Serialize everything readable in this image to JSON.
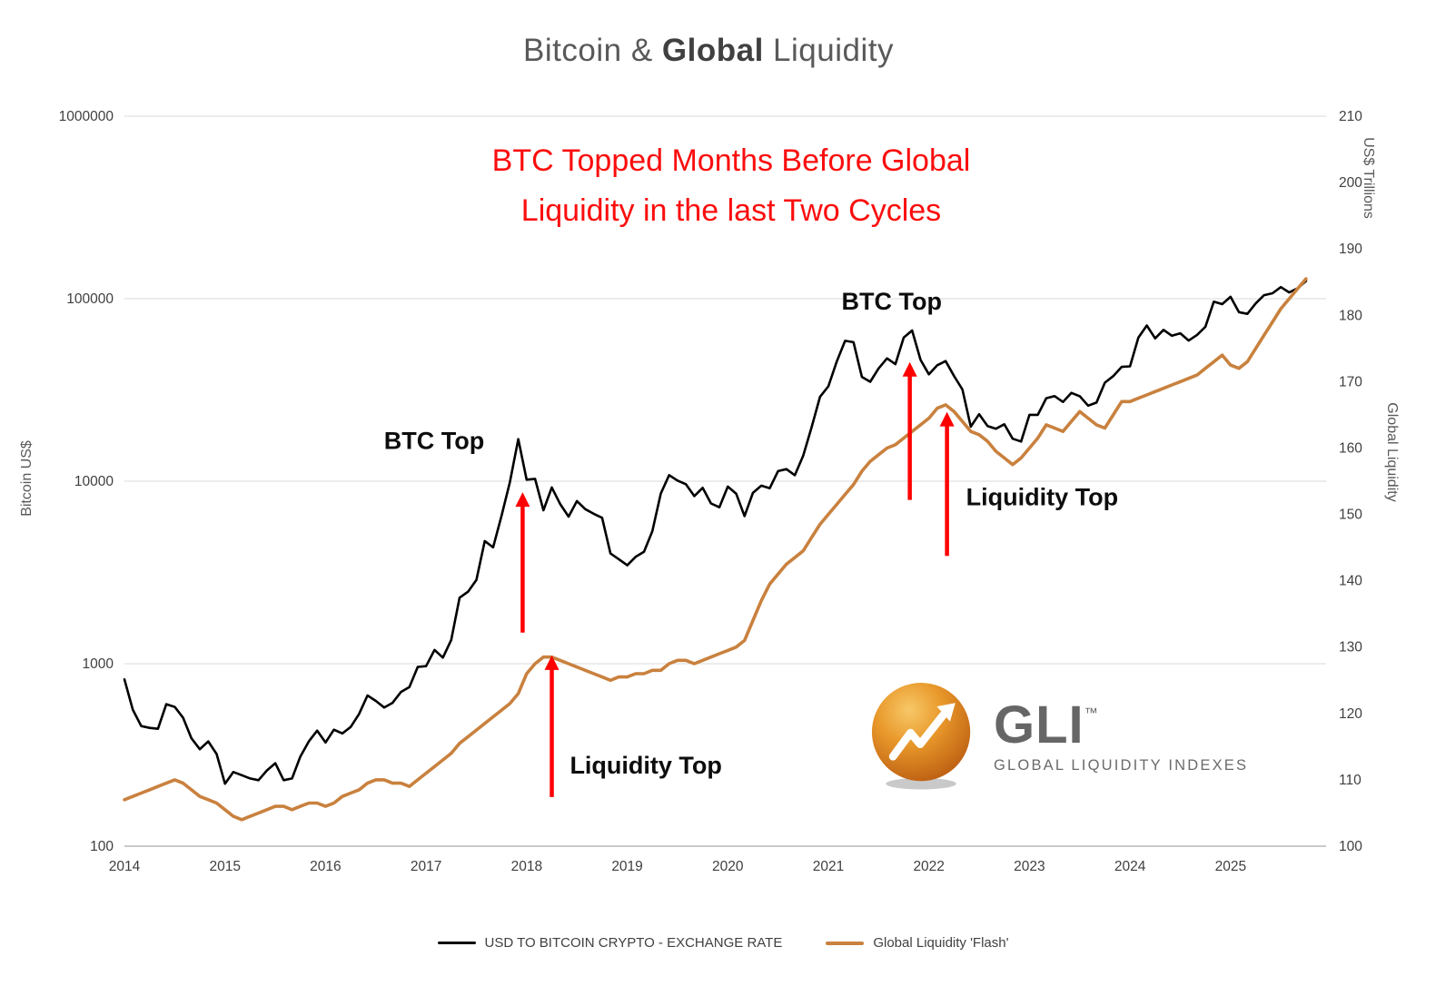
{
  "page": {
    "title_prefix": "Bitcoin & ",
    "title_bold": "Global",
    "title_suffix": " Liquidity"
  },
  "headline": {
    "line1": "BTC Topped Months Before Global",
    "line2": "Liquidity in the last Two Cycles",
    "color": "#FB0D0D"
  },
  "chart_data": {
    "type": "line",
    "title": "Bitcoin & Global Liquidity",
    "x_domain": [
      2014,
      2025.95
    ],
    "x_ticks": [
      2014,
      2015,
      2016,
      2017,
      2018,
      2019,
      2020,
      2021,
      2022,
      2023,
      2024,
      2025
    ],
    "left_axis": {
      "label": "Bitcoin US$",
      "scale": "log",
      "domain": [
        100,
        1000000
      ],
      "ticks": [
        "1000000",
        "100000",
        "10000",
        "1000",
        "100"
      ]
    },
    "right_axis": {
      "labels": [
        "US$ Trillions",
        "Global Liquidity"
      ],
      "scale": "linear",
      "domain": [
        100,
        210
      ],
      "ticks": [
        210,
        200,
        190,
        180,
        170,
        160,
        150,
        140,
        130,
        120,
        110,
        100
      ]
    },
    "x_interval": "monthly",
    "x": [
      2014,
      2014.0833,
      2014.1667,
      2014.25,
      2014.3333,
      2014.4167,
      2014.5,
      2014.5833,
      2014.6667,
      2014.75,
      2014.8333,
      2014.9167,
      2015,
      2015.0833,
      2015.1667,
      2015.25,
      2015.3333,
      2015.4167,
      2015.5,
      2015.5833,
      2015.6667,
      2015.75,
      2015.8333,
      2015.9167,
      2016,
      2016.0833,
      2016.1667,
      2016.25,
      2016.3333,
      2016.4167,
      2016.5,
      2016.5833,
      2016.6667,
      2016.75,
      2016.8333,
      2016.9167,
      2017,
      2017.0833,
      2017.1667,
      2017.25,
      2017.3333,
      2017.4167,
      2017.5,
      2017.5833,
      2017.6667,
      2017.75,
      2017.8333,
      2017.9167,
      2018,
      2018.0833,
      2018.1667,
      2018.25,
      2018.3333,
      2018.4167,
      2018.5,
      2018.5833,
      2018.6667,
      2018.75,
      2018.8333,
      2018.9167,
      2019,
      2019.0833,
      2019.1667,
      2019.25,
      2019.3333,
      2019.4167,
      2019.5,
      2019.5833,
      2019.6667,
      2019.75,
      2019.8333,
      2019.9167,
      2020,
      2020.0833,
      2020.1667,
      2020.25,
      2020.3333,
      2020.4167,
      2020.5,
      2020.5833,
      2020.6667,
      2020.75,
      2020.8333,
      2020.9167,
      2021,
      2021.0833,
      2021.1667,
      2021.25,
      2021.3333,
      2021.4167,
      2021.5,
      2021.5833,
      2021.6667,
      2021.75,
      2021.8333,
      2021.9167,
      2022,
      2022.0833,
      2022.1667,
      2022.25,
      2022.3333,
      2022.4167,
      2022.5,
      2022.5833,
      2022.6667,
      2022.75,
      2022.8333,
      2022.9167,
      2023,
      2023.0833,
      2023.1667,
      2023.25,
      2023.3333,
      2023.4167,
      2023.5,
      2023.5833,
      2023.6667,
      2023.75,
      2023.8333,
      2023.9167,
      2024,
      2024.0833,
      2024.1667,
      2024.25,
      2024.3333,
      2024.4167,
      2024.5,
      2024.5833,
      2024.6667,
      2024.75,
      2024.8333,
      2024.9167,
      2025,
      2025.0833,
      2025.1667,
      2025.25,
      2025.3333,
      2025.4167,
      2025.5,
      2025.5833,
      2025.6667,
      2025.75
    ],
    "series": [
      {
        "name": "USD TO BITCOIN CRYPTO - EXCHANGE RATE",
        "color": "#000000",
        "axis": "left",
        "values": [
          820,
          560,
          455,
          445,
          440,
          600,
          580,
          505,
          390,
          340,
          375,
          320,
          220,
          255,
          245,
          235,
          230,
          260,
          285,
          230,
          235,
          310,
          375,
          430,
          370,
          435,
          415,
          450,
          530,
          670,
          625,
          575,
          610,
          700,
          745,
          960,
          970,
          1190,
          1080,
          1350,
          2300,
          2480,
          2875,
          4700,
          4340,
          6470,
          9900,
          17000,
          10200,
          10300,
          6930,
          9240,
          7500,
          6400,
          7780,
          7030,
          6630,
          6300,
          4020,
          3740,
          3460,
          3850,
          4100,
          5320,
          8560,
          10800,
          10080,
          9630,
          8290,
          9200,
          7550,
          7200,
          9350,
          8550,
          6440,
          8630,
          9450,
          9140,
          11350,
          11650,
          10780,
          13800,
          19700,
          29000,
          33100,
          45200,
          58800,
          57750,
          37300,
          35040,
          41500,
          47100,
          43790,
          61300,
          67000,
          46200,
          38500,
          43200,
          45500,
          37700,
          31800,
          19900,
          23300,
          20050,
          19400,
          20500,
          17100,
          16500,
          23100,
          23100,
          28500,
          29250,
          27200,
          30480,
          29230,
          25930,
          26970,
          34650,
          37700,
          42280,
          42580,
          61200,
          71300,
          60640,
          67500,
          62680,
          64600,
          58970,
          63330,
          70200,
          96400,
          93400,
          102400,
          84400,
          82550,
          94200,
          104600,
          107100,
          115800,
          108200,
          114000,
          125000
        ]
      },
      {
        "name": "Global Liquidity 'Flash'",
        "color": "#C9813E",
        "axis": "right",
        "values": [
          107,
          107.5,
          108,
          108.5,
          109,
          109.5,
          110,
          109.5,
          108.5,
          107.5,
          107,
          106.5,
          105.5,
          104.5,
          104,
          104.5,
          105,
          105.5,
          106,
          106,
          105.5,
          106,
          106.5,
          106.5,
          106,
          106.5,
          107.5,
          108,
          108.5,
          109.5,
          110,
          110,
          109.5,
          109.5,
          109,
          110,
          111,
          112,
          113,
          114,
          115.5,
          116.5,
          117.5,
          118.5,
          119.5,
          120.5,
          121.5,
          123,
          126,
          127.5,
          128.5,
          128.5,
          128,
          127.5,
          127,
          126.5,
          126,
          125.5,
          125,
          125.5,
          125.5,
          126,
          126,
          126.5,
          126.5,
          127.5,
          128,
          128,
          127.5,
          128,
          128.5,
          129,
          129.5,
          130,
          131,
          134,
          137,
          139.5,
          141,
          142.5,
          143.5,
          144.5,
          146.5,
          148.5,
          150,
          151.5,
          153,
          154.5,
          156.5,
          158,
          159,
          160,
          160.5,
          161.5,
          162.5,
          163.5,
          164.5,
          166,
          166.5,
          165.5,
          164,
          162.5,
          162,
          161,
          159.5,
          158.5,
          157.5,
          158.5,
          160,
          161.5,
          163.5,
          163,
          162.5,
          164,
          165.5,
          164.5,
          163.5,
          163,
          165,
          167,
          167,
          167.5,
          168,
          168.5,
          169,
          169.5,
          170,
          170.5,
          171,
          172,
          173,
          174,
          172.5,
          172,
          173,
          175,
          177,
          179,
          181,
          182.5,
          184,
          185.5
        ]
      }
    ],
    "annotations": {
      "arrow_color": "#FF0000",
      "labels": [
        {
          "text": "BTC Top",
          "x": 2017.08,
          "y_left": 15000,
          "anchor": "middle"
        },
        {
          "text": "Liquidity Top",
          "x": 2018.43,
          "y_left": 250,
          "anchor": "start"
        },
        {
          "text": "BTC Top",
          "x": 2021.63,
          "y_left": 87000,
          "anchor": "middle"
        },
        {
          "text": "Liquidity Top",
          "x": 2022.37,
          "y_left": 7400,
          "anchor": "start"
        }
      ],
      "arrows": [
        {
          "x": 2017.96,
          "y_tail_left": 1480,
          "y_tip_left": 8700
        },
        {
          "x": 2018.25,
          "y_tail_left": 186,
          "y_tip_left": 1110
        },
        {
          "x": 2021.81,
          "y_tail_left": 7900,
          "y_tip_left": 45000
        },
        {
          "x": 2022.18,
          "y_tail_left": 3900,
          "y_tip_left": 24000
        }
      ]
    }
  },
  "legend": {
    "items": [
      {
        "label": "USD TO BITCOIN CRYPTO - EXCHANGE RATE",
        "color": "#000000"
      },
      {
        "label": "Global Liquidity 'Flash'",
        "color": "#C9813E"
      }
    ]
  },
  "logo": {
    "name": "GLI",
    "tm": "™",
    "tagline": "GLOBAL LIQUIDITY INDEXES"
  }
}
